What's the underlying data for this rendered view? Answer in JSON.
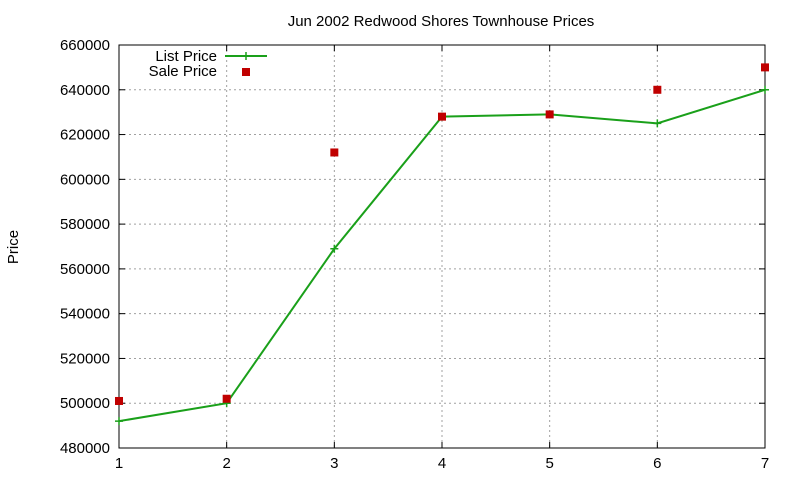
{
  "chart_data": {
    "type": "line",
    "title": "Jun 2002 Redwood Shores Townhouse Prices",
    "xlabel": "",
    "ylabel": "Price",
    "x": [
      1,
      2,
      3,
      4,
      5,
      6,
      7
    ],
    "xlim": [
      1,
      7
    ],
    "ylim": [
      480000,
      660000
    ],
    "xticks": [
      "1",
      "2",
      "3",
      "4",
      "5",
      "6",
      "7"
    ],
    "yticks": [
      "480000",
      "500000",
      "520000",
      "540000",
      "560000",
      "580000",
      "600000",
      "620000",
      "640000",
      "660000"
    ],
    "grid": true,
    "legend_position": "top-left",
    "series": [
      {
        "name": "List Price",
        "style": "line-with-plus",
        "color": "#1aa01a",
        "values": [
          492000,
          500000,
          569000,
          628000,
          629000,
          625000,
          640000
        ]
      },
      {
        "name": "Sale Price",
        "style": "square-points",
        "color": "#c00000",
        "values": [
          501000,
          502000,
          612000,
          628000,
          629000,
          640000,
          650000
        ]
      }
    ]
  }
}
